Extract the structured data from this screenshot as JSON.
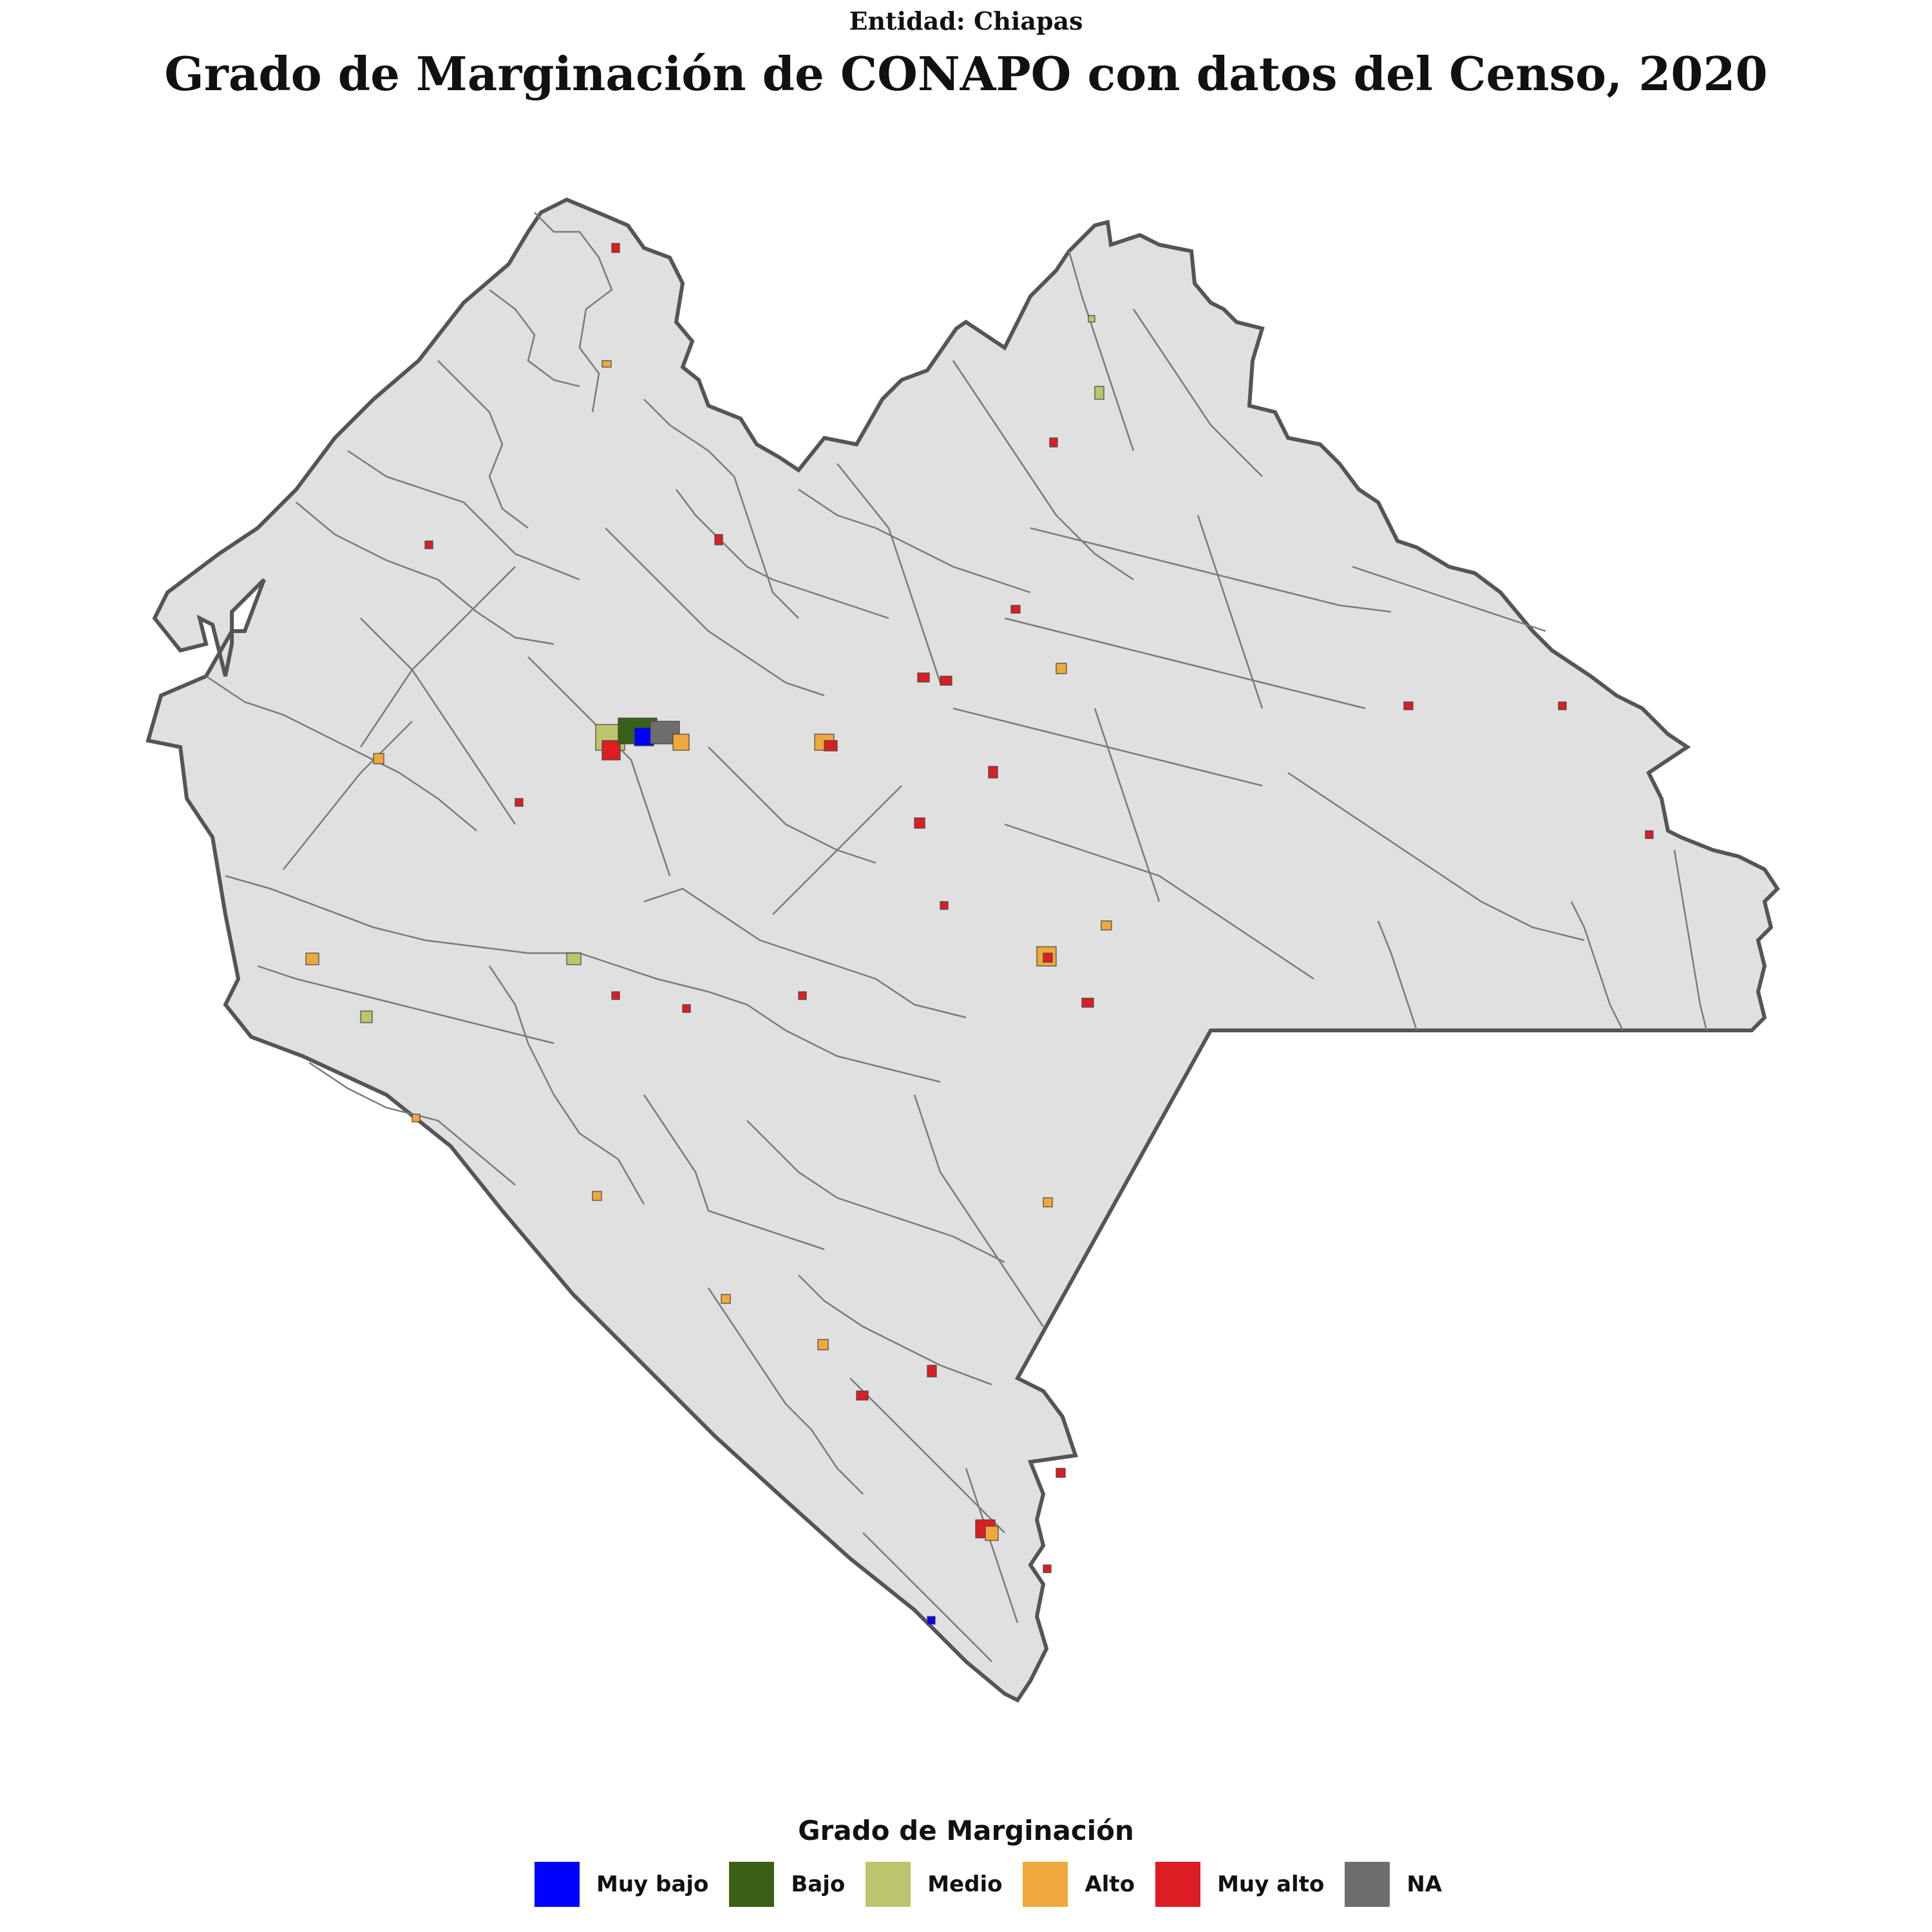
{
  "header": {
    "subtitle": "Entidad: Chiapas",
    "title": "Grado de Marginación de CONAPO con datos del Censo, 2020"
  },
  "map": {
    "region": "Chiapas",
    "fill_color": "#e0e0e0",
    "outline_color": "#555555",
    "border_color": "#7a7a7a"
  },
  "legend": {
    "title": "Grado de Marginación",
    "items": [
      {
        "label": "Muy bajo",
        "color": "#0000ff"
      },
      {
        "label": "Bajo",
        "color": "#386016"
      },
      {
        "label": "Medio",
        "color": "#bdc46e"
      },
      {
        "label": "Alto",
        "color": "#efa83c"
      },
      {
        "label": "Muy alto",
        "color": "#dc1e24"
      },
      {
        "label": "NA",
        "color": "#6e6e6e"
      }
    ]
  }
}
